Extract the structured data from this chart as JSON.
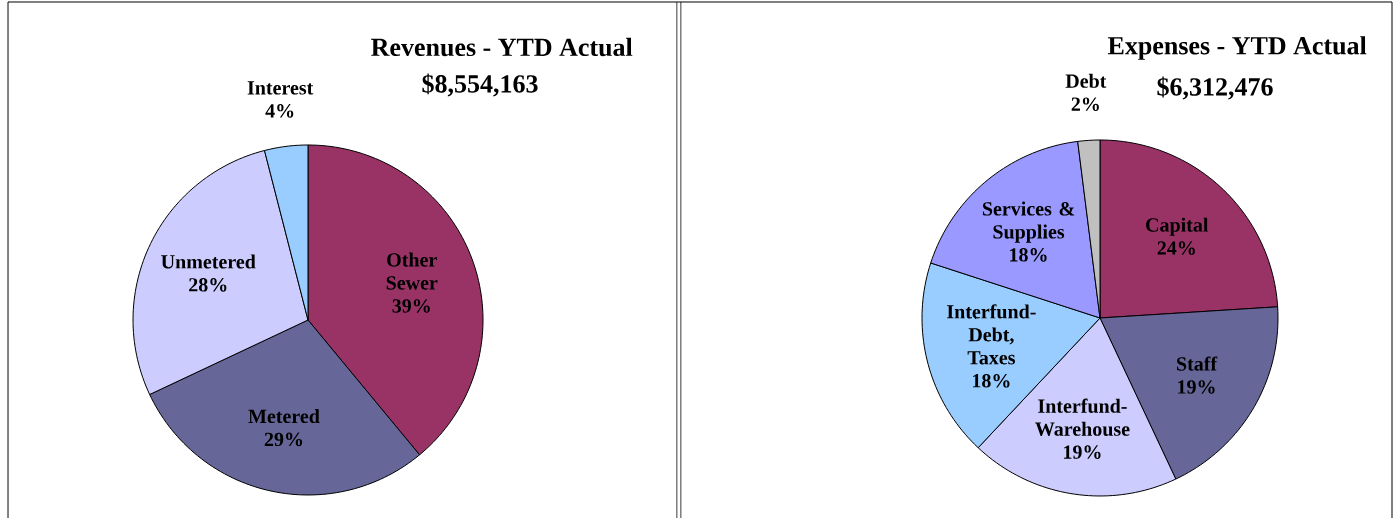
{
  "chart_data": [
    {
      "type": "pie",
      "title": "Revenues - YTD Actual",
      "subtitle": "$8,554,163",
      "categories": [
        "Other Sewer",
        "Metered",
        "Unmetered",
        "Interest"
      ],
      "values": [
        39,
        29,
        28,
        4
      ],
      "value_labels": [
        "39%",
        "29%",
        "28%",
        "4%"
      ],
      "colors": [
        "#993366",
        "#666699",
        "#ccccff",
        "#99ccff"
      ]
    },
    {
      "type": "pie",
      "title": "Expenses - YTD Actual",
      "subtitle": "$6,312,476",
      "categories": [
        "Capital",
        "Staff",
        "Interfund-Warehouse",
        "Interfund-Debt, Taxes",
        "Services & Supplies",
        "Debt"
      ],
      "values": [
        24,
        19,
        19,
        18,
        18,
        2
      ],
      "value_labels": [
        "24%",
        "19%",
        "19%",
        "18%",
        "18%",
        "2%"
      ],
      "colors": [
        "#993366",
        "#666699",
        "#ccccff",
        "#99ccff",
        "#9999ff",
        "#c0c0c0"
      ]
    }
  ]
}
